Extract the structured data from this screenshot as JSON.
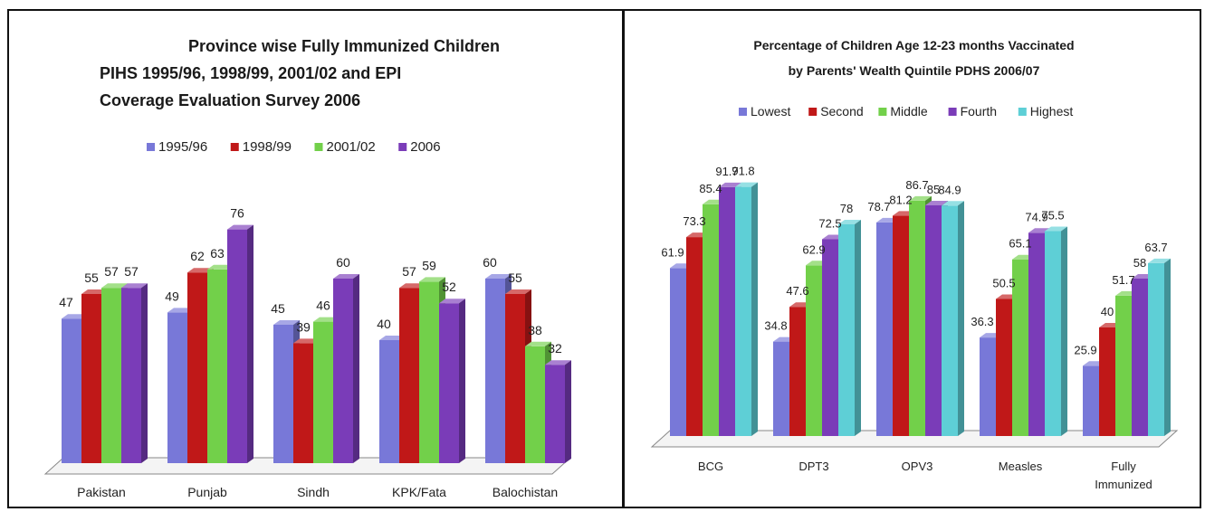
{
  "left_chart": {
    "title_lines": [
      "Province wise Fully Immunized Children",
      "PIHS 1995/96, 1998/99, 2001/02 and EPI",
      "Coverage Evaluation Survey 2006"
    ]
  },
  "right_chart": {
    "title_lines": [
      "Percentage of Children Age 12-23 months Vaccinated",
      "by Parents' Wealth Quintile PDHS 2006/07"
    ]
  },
  "chart_data": [
    {
      "type": "bar",
      "title": "Province wise Fully Immunized Children PIHS 1995/96, 1998/99, 2001/02 and EPI Coverage Evaluation Survey 2006",
      "categories": [
        "Pakistan",
        "Punjab",
        "Sindh",
        "KPK/Fata",
        "Balochistan"
      ],
      "series": [
        {
          "name": "1995/96",
          "color": "#7878d8",
          "values": [
            47,
            49,
            45,
            40,
            60
          ]
        },
        {
          "name": "1998/99",
          "color": "#c01818",
          "values": [
            55,
            62,
            39,
            57,
            55
          ]
        },
        {
          "name": "2001/02",
          "color": "#72d04a",
          "values": [
            57,
            63,
            46,
            59,
            38
          ]
        },
        {
          "name": "2006",
          "color": "#7a3cb8",
          "values": [
            57,
            76,
            60,
            52,
            32
          ]
        }
      ],
      "ylim": [
        0,
        100
      ],
      "legend": "top",
      "grid": false
    },
    {
      "type": "bar",
      "title": "Percentage of Children Age 12-23 months Vaccinated by Parents' Wealth Quintile PDHS 2006/07",
      "categories": [
        "BCG",
        "DPT3",
        "OPV3",
        "Measles",
        "Fully Immunized"
      ],
      "series": [
        {
          "name": "Lowest",
          "color": "#7878d8",
          "values": [
            61.9,
            34.8,
            78.7,
            36.3,
            25.9
          ]
        },
        {
          "name": "Second",
          "color": "#c01818",
          "values": [
            73.3,
            47.6,
            81.2,
            50.5,
            40
          ]
        },
        {
          "name": "Middle",
          "color": "#72d04a",
          "values": [
            85.4,
            62.9,
            86.7,
            65.1,
            51.7
          ]
        },
        {
          "name": "Fourth",
          "color": "#7a3cb8",
          "values": [
            91.7,
            72.5,
            85,
            74.9,
            58
          ]
        },
        {
          "name": "Highest",
          "color": "#5ecfd6",
          "values": [
            91.8,
            78,
            84.9,
            75.5,
            63.7
          ]
        }
      ],
      "ylim": [
        0,
        100
      ],
      "legend": "top",
      "grid": false
    }
  ]
}
